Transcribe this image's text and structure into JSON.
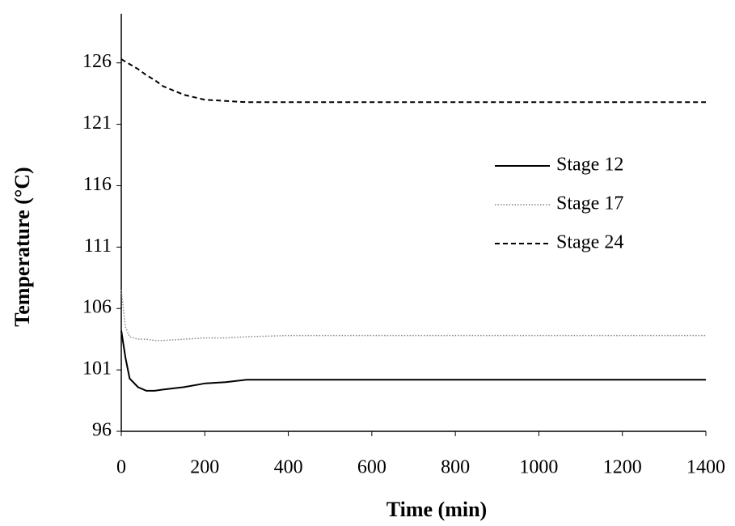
{
  "chart_data": {
    "type": "line",
    "x_label": "Time (min)",
    "y_label": "Temperature (°C)",
    "x": [
      0,
      10,
      20,
      40,
      60,
      80,
      100,
      150,
      200,
      250,
      300,
      400,
      600,
      800,
      1000,
      1200,
      1400
    ],
    "series": [
      {
        "name": "Stage 12",
        "color": "#000000",
        "style": "solid",
        "values": [
          104.2,
          102,
          100.3,
          99.6,
          99.3,
          99.3,
          99.4,
          99.6,
          99.9,
          100.0,
          100.2,
          100.2,
          100.2,
          100.2,
          100.2,
          100.2,
          100.2
        ]
      },
      {
        "name": "Stage 17",
        "color": "#888888",
        "style": "dotted",
        "values": [
          107.5,
          104.5,
          103.7,
          103.5,
          103.5,
          103.4,
          103.4,
          103.5,
          103.6,
          103.6,
          103.7,
          103.8,
          103.8,
          103.8,
          103.8,
          103.8,
          103.8
        ]
      },
      {
        "name": "Stage 24",
        "color": "#000000",
        "style": "dashed",
        "values": [
          126.3,
          126.1,
          125.9,
          125.5,
          125.0,
          124.6,
          124.1,
          123.4,
          123.0,
          122.9,
          122.8,
          122.8,
          122.8,
          122.8,
          122.8,
          122.8,
          122.8
        ]
      }
    ],
    "xlim": [
      0,
      1400
    ],
    "xticks": [
      0,
      200,
      400,
      600,
      800,
      1000,
      1200,
      1400
    ],
    "ylim": [
      96,
      130
    ],
    "yticks": [
      96,
      101,
      106,
      111,
      116,
      121,
      126
    ],
    "grid": false,
    "legend": "right"
  }
}
